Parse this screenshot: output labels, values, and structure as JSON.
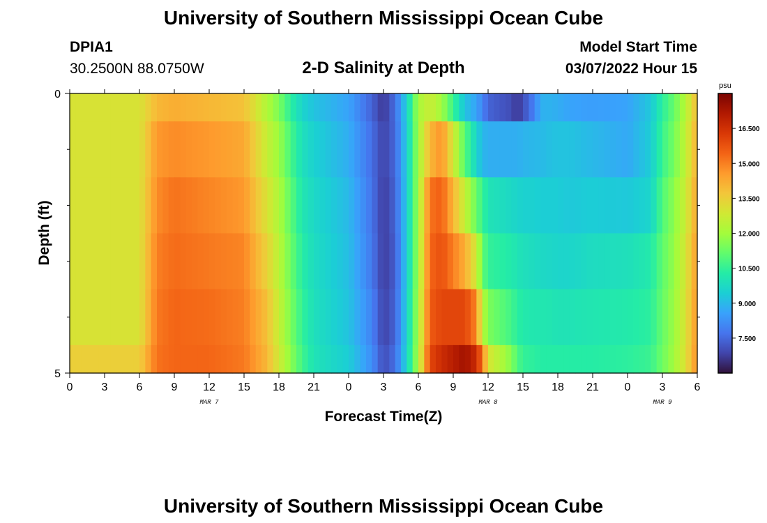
{
  "page": {
    "title": "University of Southern Mississippi Ocean Cube",
    "footer_title": "University of Southern Mississippi Ocean Cube"
  },
  "station": {
    "name": "DPIA1",
    "coords": "30.2500N  88.0750W"
  },
  "plot_title": "2-D Salinity at Depth",
  "model_start": {
    "label": "Model Start Time",
    "value": "03/07/2022 Hour 15"
  },
  "chart_data": {
    "type": "heatmap",
    "title": "2-D Salinity at Depth",
    "xlabel": "Forecast Time(Z)",
    "ylabel": "Depth (ft)",
    "x_range": [
      0,
      54
    ],
    "y_range": [
      0,
      5
    ],
    "x_tick_hours": [
      0,
      3,
      6,
      9,
      12,
      15,
      18,
      21,
      24,
      27,
      30,
      33,
      36,
      39,
      42,
      45,
      48,
      51,
      54
    ],
    "x_tick_labels": [
      "0",
      "3",
      "6",
      "9",
      "12",
      "15",
      "18",
      "21",
      "0",
      "3",
      "6",
      "9",
      "12",
      "15",
      "18",
      "21",
      "0",
      "3",
      "6"
    ],
    "y_tick_labels": [
      "0",
      "5"
    ],
    "y_minor_ticks": [
      1,
      2,
      3,
      4
    ],
    "date_labels": [
      {
        "text": "MAR 7",
        "hour": 12
      },
      {
        "text": "MAR 8",
        "hour": 36
      },
      {
        "text": "MAR 9",
        "hour": 51
      }
    ],
    "colorbar": {
      "units": "psu",
      "min": 6.0,
      "max": 18.0,
      "ticks": [
        7.5,
        9.0,
        10.5,
        12.0,
        13.5,
        15.0,
        16.5
      ],
      "tick_labels": [
        "7.500",
        "9.000",
        "10.500",
        "12.000",
        "13.500",
        "15.000",
        "16.500"
      ],
      "colors": [
        "#30123b",
        "#4145ab",
        "#4675ed",
        "#39a2fc",
        "#1bcfd4",
        "#24eca6",
        "#61fc6c",
        "#a4fc3b",
        "#d1e834",
        "#f3c63a",
        "#fe9b2d",
        "#f36315",
        "#d93806",
        "#b11901",
        "#7a0402"
      ]
    },
    "time_nodes": [
      0,
      6,
      7.5,
      9,
      12,
      15,
      17,
      18,
      19,
      20,
      21,
      24,
      26,
      27,
      28,
      29,
      30,
      31,
      32,
      34,
      35,
      35.5,
      36,
      38,
      38.5,
      39,
      40,
      40.5,
      41,
      42,
      43,
      45,
      48,
      50,
      51,
      52,
      53,
      54
    ],
    "depth_rows": [
      {
        "depth": 0.25,
        "salinity": [
          13.0,
          13.0,
          14.0,
          14.2,
          14.0,
          13.8,
          12.2,
          11.5,
          10.4,
          9.6,
          9.2,
          8.6,
          7.4,
          6.6,
          7.6,
          9.5,
          12.1,
          12.7,
          12.0,
          9.2,
          8.6,
          8.0,
          7.4,
          7.0,
          6.6,
          7.0,
          8.0,
          8.8,
          8.9,
          8.8,
          8.6,
          8.5,
          8.6,
          9.3,
          10.4,
          11.2,
          12.3,
          14.0
        ]
      },
      {
        "depth": 1.0,
        "salinity": [
          13.0,
          13.0,
          14.6,
          14.8,
          14.6,
          14.3,
          12.6,
          11.9,
          10.8,
          9.9,
          9.5,
          8.8,
          7.6,
          6.8,
          7.5,
          9.4,
          12.0,
          14.0,
          14.7,
          11.0,
          9.6,
          9.0,
          8.8,
          8.8,
          8.8,
          8.9,
          9.0,
          9.0,
          9.1,
          9.2,
          9.2,
          9.0,
          8.7,
          9.4,
          10.6,
          11.4,
          12.5,
          14.2
        ]
      },
      {
        "depth": 2.0,
        "salinity": [
          13.0,
          13.0,
          14.8,
          15.2,
          14.9,
          14.6,
          13.0,
          12.2,
          11.1,
          10.1,
          9.7,
          9.0,
          7.7,
          6.7,
          7.4,
          9.4,
          12.0,
          15.2,
          15.5,
          12.6,
          11.2,
          10.6,
          10.0,
          9.7,
          9.6,
          9.5,
          9.5,
          9.4,
          9.4,
          9.4,
          9.3,
          9.4,
          9.3,
          9.6,
          10.9,
          11.7,
          12.7,
          14.4
        ]
      },
      {
        "depth": 3.0,
        "salinity": [
          13.0,
          13.0,
          15.0,
          15.3,
          15.1,
          14.9,
          13.4,
          12.4,
          11.3,
          10.3,
          9.8,
          9.1,
          7.8,
          6.7,
          7.3,
          9.4,
          12.0,
          15.4,
          15.8,
          14.2,
          12.8,
          11.2,
          10.5,
          10.2,
          10.0,
          9.9,
          9.8,
          9.7,
          9.7,
          9.6,
          9.6,
          9.8,
          9.9,
          10.2,
          11.1,
          11.8,
          12.9,
          14.6
        ]
      },
      {
        "depth": 4.0,
        "salinity": [
          13.0,
          13.0,
          15.1,
          15.4,
          15.3,
          15.0,
          13.8,
          12.6,
          11.5,
          10.5,
          9.9,
          9.2,
          8.0,
          6.8,
          7.4,
          9.5,
          12.1,
          15.6,
          16.0,
          16.0,
          14.9,
          12.4,
          11.5,
          10.7,
          10.4,
          10.2,
          10.1,
          10.1,
          10.1,
          10.0,
          10.0,
          10.1,
          10.2,
          10.4,
          11.2,
          11.9,
          13.0,
          14.7
        ]
      },
      {
        "depth": 4.75,
        "salinity": [
          13.5,
          13.5,
          15.2,
          15.4,
          15.4,
          15.1,
          14.0,
          12.8,
          11.7,
          10.7,
          10.0,
          9.4,
          8.2,
          7.0,
          7.6,
          9.6,
          12.2,
          16.0,
          16.6,
          17.4,
          16.6,
          15.2,
          13.0,
          11.6,
          10.9,
          10.5,
          10.4,
          10.3,
          10.3,
          10.3,
          10.3,
          10.3,
          10.4,
          10.6,
          11.3,
          12.0,
          13.1,
          14.8
        ]
      }
    ]
  }
}
